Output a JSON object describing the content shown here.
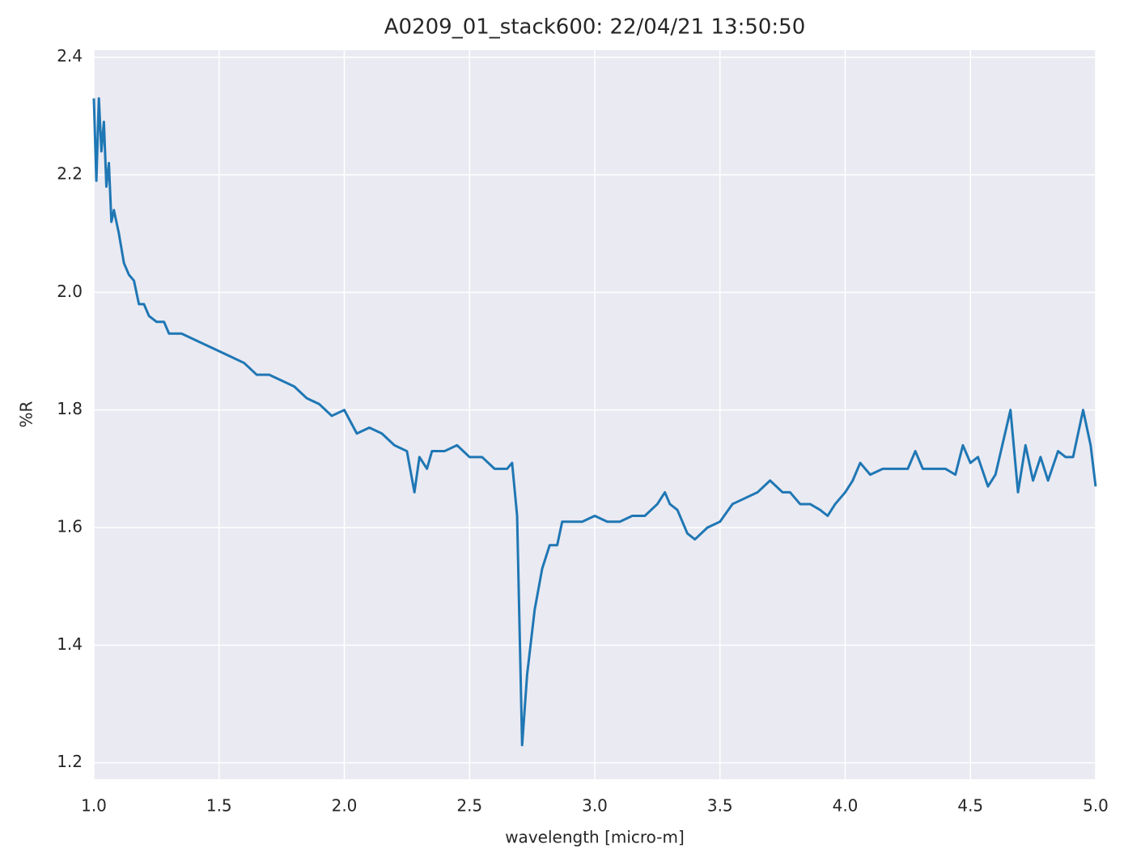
{
  "chart_data": {
    "type": "line",
    "title": "A0209_01_stack600:  22/04/21 13:50:50",
    "xlabel": "wavelength [micro-m]",
    "ylabel": "%R",
    "x": [
      1.0,
      1.01,
      1.02,
      1.03,
      1.04,
      1.05,
      1.06,
      1.07,
      1.08,
      1.1,
      1.12,
      1.14,
      1.16,
      1.18,
      1.2,
      1.22,
      1.25,
      1.28,
      1.3,
      1.35,
      1.4,
      1.45,
      1.5,
      1.55,
      1.6,
      1.65,
      1.7,
      1.75,
      1.8,
      1.85,
      1.9,
      1.95,
      2.0,
      2.05,
      2.1,
      2.15,
      2.2,
      2.25,
      2.28,
      2.3,
      2.33,
      2.35,
      2.4,
      2.45,
      2.5,
      2.55,
      2.6,
      2.65,
      2.67,
      2.69,
      2.71,
      2.73,
      2.76,
      2.79,
      2.82,
      2.85,
      2.87,
      2.9,
      2.95,
      3.0,
      3.05,
      3.1,
      3.15,
      3.2,
      3.25,
      3.28,
      3.3,
      3.33,
      3.37,
      3.4,
      3.45,
      3.5,
      3.55,
      3.6,
      3.65,
      3.7,
      3.75,
      3.78,
      3.82,
      3.86,
      3.9,
      3.93,
      3.96,
      4.0,
      4.03,
      4.06,
      4.1,
      4.15,
      4.2,
      4.25,
      4.28,
      4.31,
      4.35,
      4.4,
      4.44,
      4.47,
      4.5,
      4.53,
      4.57,
      4.6,
      4.66,
      4.69,
      4.72,
      4.75,
      4.78,
      4.81,
      4.85,
      4.88,
      4.91,
      4.95,
      4.98,
      5.0
    ],
    "values": [
      2.33,
      2.19,
      2.33,
      2.24,
      2.29,
      2.18,
      2.22,
      2.12,
      2.14,
      2.1,
      2.05,
      2.03,
      2.02,
      1.98,
      1.98,
      1.96,
      1.95,
      1.95,
      1.93,
      1.93,
      1.92,
      1.91,
      1.9,
      1.89,
      1.88,
      1.86,
      1.86,
      1.85,
      1.84,
      1.82,
      1.81,
      1.79,
      1.8,
      1.76,
      1.77,
      1.76,
      1.74,
      1.73,
      1.66,
      1.72,
      1.7,
      1.73,
      1.73,
      1.74,
      1.72,
      1.72,
      1.7,
      1.7,
      1.71,
      1.62,
      1.23,
      1.35,
      1.46,
      1.53,
      1.57,
      1.57,
      1.61,
      1.61,
      1.61,
      1.62,
      1.61,
      1.61,
      1.62,
      1.62,
      1.64,
      1.66,
      1.64,
      1.63,
      1.59,
      1.58,
      1.6,
      1.61,
      1.64,
      1.65,
      1.66,
      1.68,
      1.66,
      1.66,
      1.64,
      1.64,
      1.63,
      1.62,
      1.64,
      1.66,
      1.68,
      1.71,
      1.69,
      1.7,
      1.7,
      1.7,
      1.73,
      1.7,
      1.7,
      1.7,
      1.69,
      1.74,
      1.71,
      1.72,
      1.67,
      1.69,
      1.8,
      1.66,
      1.74,
      1.68,
      1.72,
      1.68,
      1.73,
      1.72,
      1.72,
      1.8,
      1.74,
      1.67
    ],
    "color": "#1f77b4",
    "xlim": [
      1,
      5
    ],
    "ylim": [
      1.172,
      2.412
    ],
    "xticks": [
      {
        "value": 1,
        "label": "1.0"
      },
      1.5,
      {
        "value": 2,
        "label": "2.0"
      },
      2.5,
      {
        "value": 3,
        "label": "3.0"
      },
      3.5,
      {
        "value": 4,
        "label": "4.0"
      },
      4.5,
      {
        "value": 5,
        "label": "5.0"
      }
    ],
    "yticks": [
      1.2,
      1.4,
      1.6,
      1.8,
      {
        "value": 2,
        "label": "2.0"
      },
      2.2,
      2.4
    ],
    "grid": true
  }
}
